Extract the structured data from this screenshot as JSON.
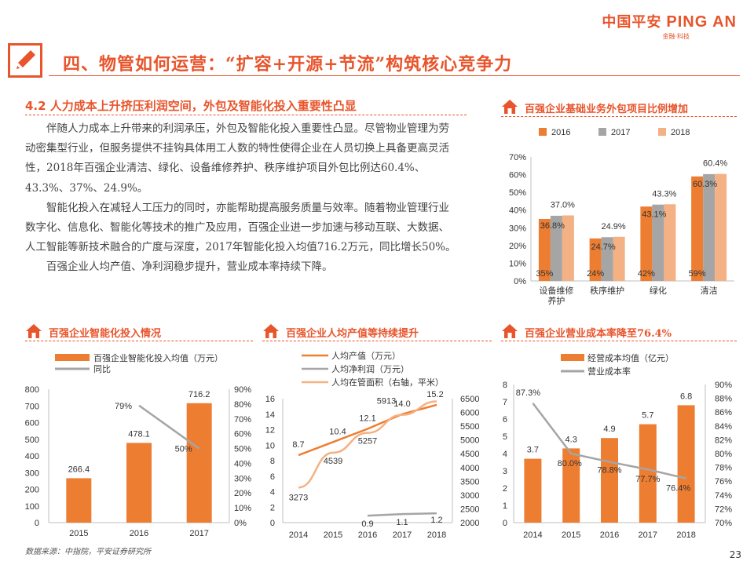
{
  "brand": {
    "name_cn": "中国平安",
    "name_en": "PING AN",
    "tagline": "金融·科技"
  },
  "header": {
    "title": "四、物管如何运营：“扩容+开源+节流”构筑核心竞争力"
  },
  "section": {
    "heading": "4.2 人力成本上升挤压利润空间，外包及智能化投入重要性凸显",
    "paragraphs": [
      "伴随人力成本上升带来的利润承压，外包及智能化投入重要性凸显。尽管物业管理为劳动密集型行业，但服务提供不挂钩具体用工人数的特性使得企业在人员切换上具备更高灵活性，2018年百强企业清洁、绿化、设备维修养护、秩序维护项目外包比例达60.4%、43.3%、37%、24.9%。",
      "智能化投入在减轻人工压力的同时，亦能帮助提高服务质量与效率。随着物业管理行业数字化、信息化、智能化等技术的推广及应用，百强企业进一步加速与移动互联、大数据、人工智能等新技术融合的广度与深度，2017年智能化投入均值716.2万元，同比增长50%。",
      "百强企业人均产值、净利润稳步提升，营业成本率持续下降。"
    ]
  },
  "footer": {
    "source": "数据来源：中指院，平安证券研究所",
    "page": "23"
  },
  "colors": {
    "orange": "#ed7d31",
    "gray": "#a5a5a5",
    "peach": "#f8cbad",
    "lightorange": "#f4b183",
    "brand": "#e8542b"
  },
  "chart_data": [
    {
      "id": "outsourcing",
      "title": "百强企业基础业务外包项目比例增加",
      "type": "bar",
      "categories": [
        "设备维修养护",
        "秩序维护",
        "绿化",
        "清洁"
      ],
      "series": [
        {
          "name": "2016",
          "values": [
            35,
            24,
            42,
            59
          ],
          "labels": [
            "35%",
            "24%",
            "42%",
            "59%"
          ]
        },
        {
          "name": "2017",
          "values": [
            36.8,
            24.7,
            43.1,
            60.3
          ],
          "labels": [
            "36.8%",
            "24.7%",
            "43.1%",
            "60.3%"
          ]
        },
        {
          "name": "2018",
          "values": [
            37.0,
            24.9,
            43.3,
            60.4
          ],
          "labels": [
            "37.0%",
            "24.9%",
            "43.3%",
            "60.4%"
          ]
        }
      ],
      "ylim": [
        0,
        70
      ],
      "yticks": [
        "0%",
        "10%",
        "20%",
        "30%",
        "40%",
        "50%",
        "60%",
        "70%"
      ],
      "legend": "top"
    },
    {
      "id": "intelligent",
      "title": "百强企业智能化投入情况",
      "type": "bar",
      "categories": [
        "2015",
        "2016",
        "2017"
      ],
      "series": [
        {
          "name": "百强企业智能化投入均值（万元）",
          "kind": "bar",
          "values": [
            266.4,
            478.1,
            716.2
          ],
          "labels": [
            "266.4",
            "478.1",
            "716.2"
          ]
        },
        {
          "name": "同比",
          "kind": "line",
          "axis": "right",
          "values": [
            null,
            79,
            50
          ],
          "labels": [
            "",
            "79%",
            "50%"
          ]
        }
      ],
      "ylim": [
        0,
        800
      ],
      "yticks": [
        "0",
        "100",
        "200",
        "300",
        "400",
        "500",
        "600",
        "700",
        "800"
      ],
      "y2lim": [
        0,
        90
      ],
      "y2ticks": [
        "0%",
        "10%",
        "20%",
        "30%",
        "40%",
        "50%",
        "60%",
        "70%",
        "80%",
        "90%"
      ],
      "legend": "top-left"
    },
    {
      "id": "productivity",
      "title": "百强企业人均产值等持续提升",
      "type": "line",
      "categories": [
        "2014",
        "2015",
        "2016",
        "2017",
        "2018"
      ],
      "series": [
        {
          "name": "人均产值（万元）",
          "axis": "left",
          "values": [
            8.7,
            10.4,
            12.1,
            14.0,
            15.2
          ],
          "labels": [
            "8.7",
            "10.4",
            "12.1",
            "14.0",
            "15.2"
          ]
        },
        {
          "name": "人均净利润（万元）",
          "axis": "left",
          "values": [
            null,
            null,
            0.9,
            1.1,
            1.2
          ],
          "labels": [
            "",
            "",
            "0.9",
            "1.1",
            "1.2"
          ]
        },
        {
          "name": "人均在管面积（右轴，平米）",
          "axis": "right",
          "values": [
            3273,
            4539,
            5257,
            5913,
            6400
          ],
          "labels": [
            "3273",
            "4539",
            "5257",
            "5913",
            ""
          ]
        }
      ],
      "ylim": [
        0,
        16
      ],
      "yticks": [
        "0",
        "2",
        "4",
        "6",
        "8",
        "10",
        "12",
        "14",
        "16"
      ],
      "y2lim": [
        2000,
        6500
      ],
      "y2ticks": [
        "2000",
        "2500",
        "3000",
        "3500",
        "4000",
        "4500",
        "5000",
        "5500",
        "6000",
        "6500"
      ],
      "legend": "top"
    },
    {
      "id": "costrate",
      "title": "百强企业营业成本率降至76.4%",
      "type": "bar",
      "categories": [
        "2014",
        "2015",
        "2016",
        "2017",
        "2018"
      ],
      "series": [
        {
          "name": "经营成本均值（亿元）",
          "kind": "bar",
          "values": [
            3.7,
            4.3,
            4.9,
            5.7,
            6.8
          ],
          "labels": [
            "3.7",
            "4.3",
            "4.9",
            "5.7",
            "6.8"
          ]
        },
        {
          "name": "营业成本率",
          "kind": "line",
          "axis": "right",
          "values": [
            87.3,
            80.0,
            78.8,
            77.7,
            76.4
          ],
          "labels": [
            "87.3%",
            "80.0%",
            "78.8%",
            "77.7%",
            "76.4%"
          ]
        }
      ],
      "ylim": [
        0,
        8
      ],
      "yticks": [
        "0",
        "1",
        "2",
        "3",
        "4",
        "5",
        "6",
        "7",
        "8"
      ],
      "y2lim": [
        70,
        90
      ],
      "y2ticks": [
        "70%",
        "72%",
        "74%",
        "76%",
        "78%",
        "80%",
        "82%",
        "84%",
        "86%",
        "88%",
        "90%"
      ],
      "legend": "top"
    }
  ]
}
